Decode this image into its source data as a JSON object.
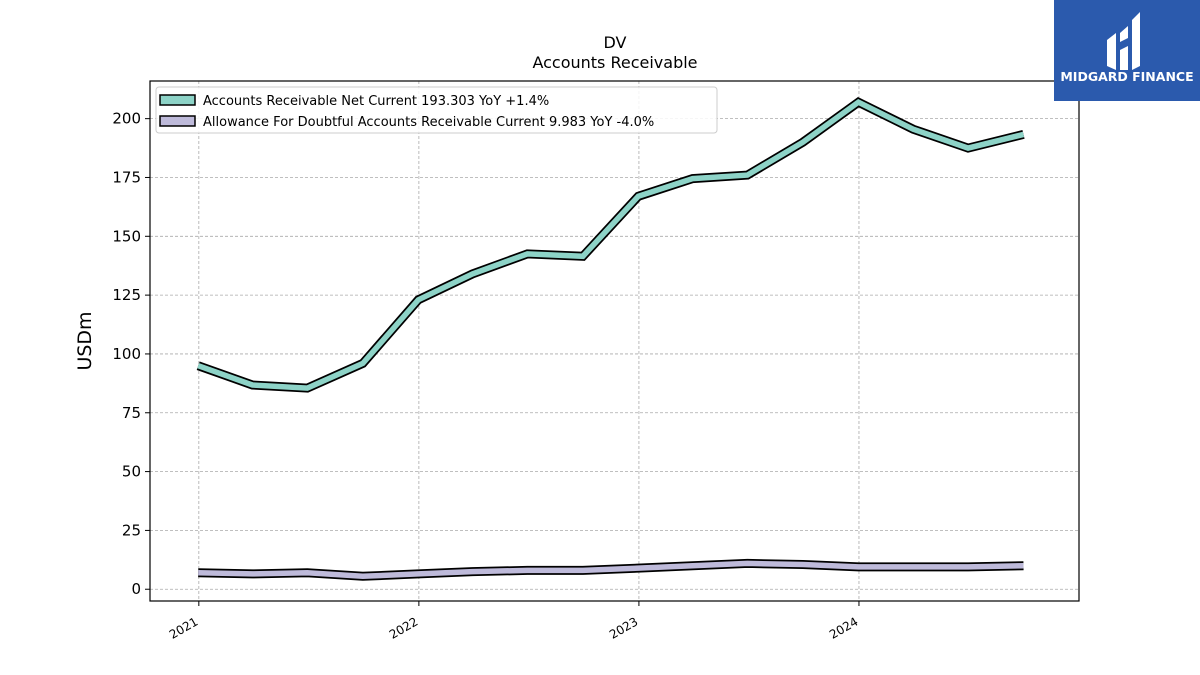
{
  "chart_data": {
    "type": "line",
    "title": "DV",
    "subtitle": "Accounts Receivable",
    "xlabel": "",
    "ylabel": "USDm",
    "ylim": [
      -5,
      216
    ],
    "yticks": [
      0,
      25,
      50,
      75,
      100,
      125,
      150,
      175,
      200
    ],
    "xlim": [
      "2020-10-12",
      "2024-12-31"
    ],
    "xticks": [
      {
        "label": "2021",
        "date": "2021-01-01"
      },
      {
        "label": "2022",
        "date": "2022-01-01"
      },
      {
        "label": "2023",
        "date": "2023-01-01"
      },
      {
        "label": "2024",
        "date": "2024-01-01"
      }
    ],
    "grid": true,
    "legend_position": "top-left",
    "x": [
      "2020-12-31",
      "2021-03-31",
      "2021-06-30",
      "2021-09-30",
      "2021-12-31",
      "2022-03-31",
      "2022-06-30",
      "2022-09-30",
      "2022-12-31",
      "2023-03-31",
      "2023-06-30",
      "2023-09-30",
      "2023-12-31",
      "2024-03-31",
      "2024-06-30",
      "2024-09-30"
    ],
    "series": [
      {
        "name": "Accounts Receivable Net Current",
        "legend_label": "Accounts Receivable Net Current  193.303 YoY +1.4%",
        "color": "#8dd3c7",
        "values": [
          95,
          86.8,
          85.5,
          96,
          123,
          134,
          142.5,
          141.5,
          167,
          174.5,
          176,
          190,
          207,
          195.5,
          187.5,
          193.3
        ]
      },
      {
        "name": "Allowance For Doubtful Accounts Receivable Current",
        "legend_label": "Allowance For Doubtful Accounts Receivable Current  9.983 YoY -4.0%",
        "color": "#bebada",
        "values": [
          7,
          6.5,
          7,
          5.5,
          6.5,
          7.5,
          8,
          8,
          9,
          10,
          11,
          10.5,
          9.5,
          9.5,
          9.5,
          10
        ]
      }
    ]
  },
  "logo": {
    "text": "MIDGARD FINANCE",
    "background": "#2b5aad"
  }
}
